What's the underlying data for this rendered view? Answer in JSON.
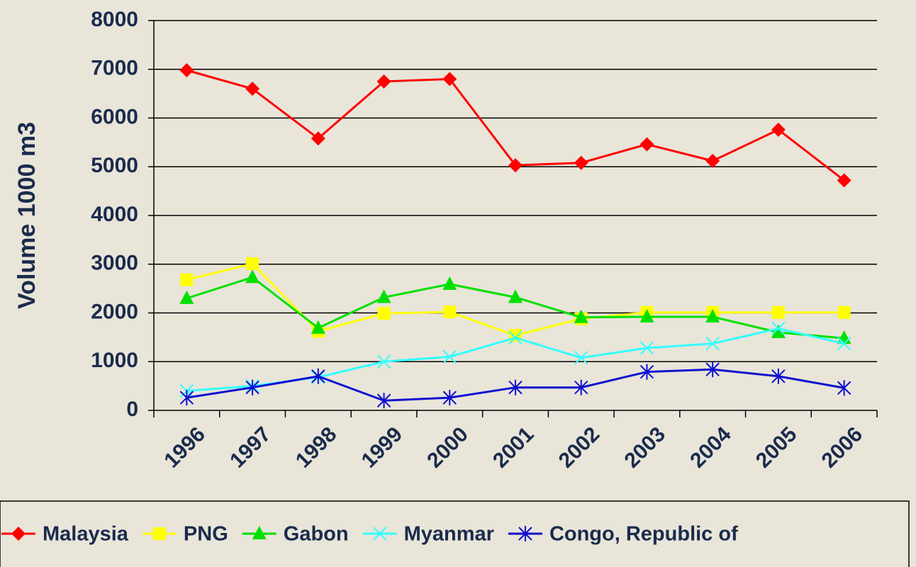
{
  "chart_data": {
    "type": "line",
    "y_label": "Volume 1000 m3",
    "categories": [
      "1996",
      "1997",
      "1998",
      "1999",
      "2000",
      "2001",
      "2002",
      "2003",
      "2004",
      "2005",
      "2006"
    ],
    "series": [
      {
        "name": "Malaysia",
        "color": "#ff0000",
        "marker": "diamond",
        "values": [
          6980,
          6600,
          5580,
          6750,
          6800,
          5030,
          5080,
          5460,
          5120,
          5760,
          4720
        ]
      },
      {
        "name": "PNG",
        "color": "#ffff00",
        "marker": "square",
        "values": [
          2680,
          3010,
          1620,
          1990,
          2020,
          1540,
          1880,
          2010,
          2010,
          2010,
          2010
        ]
      },
      {
        "name": "Gabon",
        "color": "#00e000",
        "marker": "triangle",
        "values": [
          2300,
          2730,
          1690,
          2320,
          2590,
          2320,
          1910,
          1920,
          1920,
          1600,
          1480
        ]
      },
      {
        "name": "Myanmar",
        "color": "#33ffff",
        "marker": "x",
        "values": [
          400,
          500,
          680,
          1000,
          1100,
          1490,
          1080,
          1280,
          1370,
          1680,
          1370
        ]
      },
      {
        "name": "Congo, Republic of",
        "color": "#1010d0",
        "marker": "asterisk",
        "values": [
          260,
          470,
          700,
          200,
          260,
          470,
          470,
          790,
          840,
          700,
          460
        ]
      }
    ],
    "ylim": [
      0,
      8000
    ],
    "yticks": [
      0,
      1000,
      2000,
      3000,
      4000,
      5000,
      6000,
      7000,
      8000
    ],
    "grid": true,
    "legend": "bottom"
  }
}
